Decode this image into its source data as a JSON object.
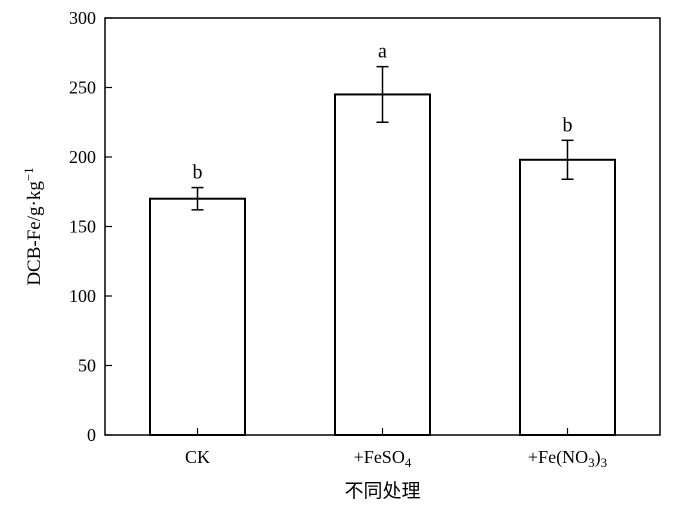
{
  "chart_data": {
    "type": "bar",
    "title": "",
    "xlabel": "不同处理",
    "ylabel": {
      "base": "DCB-Fe/g·kg",
      "sup": "−1"
    },
    "ylim": [
      0,
      300
    ],
    "yticks": [
      0,
      50,
      100,
      150,
      200,
      250,
      300
    ],
    "categories": [
      {
        "label": "CK",
        "parts": [
          {
            "t": "CK",
            "sub": false
          }
        ]
      },
      {
        "label": "+FeSO4",
        "parts": [
          {
            "t": "+FeSO",
            "sub": false
          },
          {
            "t": "4",
            "sub": true
          }
        ]
      },
      {
        "label": "+Fe(NO3)3",
        "parts": [
          {
            "t": "+Fe(NO",
            "sub": false
          },
          {
            "t": "3",
            "sub": true
          },
          {
            "t": ")",
            "sub": false
          },
          {
            "t": "3",
            "sub": true
          }
        ]
      }
    ],
    "values": [
      170,
      245,
      198
    ],
    "errors": [
      8,
      20,
      14
    ],
    "significance": [
      "b",
      "a",
      "b"
    ],
    "grid": false,
    "legend": "none"
  }
}
